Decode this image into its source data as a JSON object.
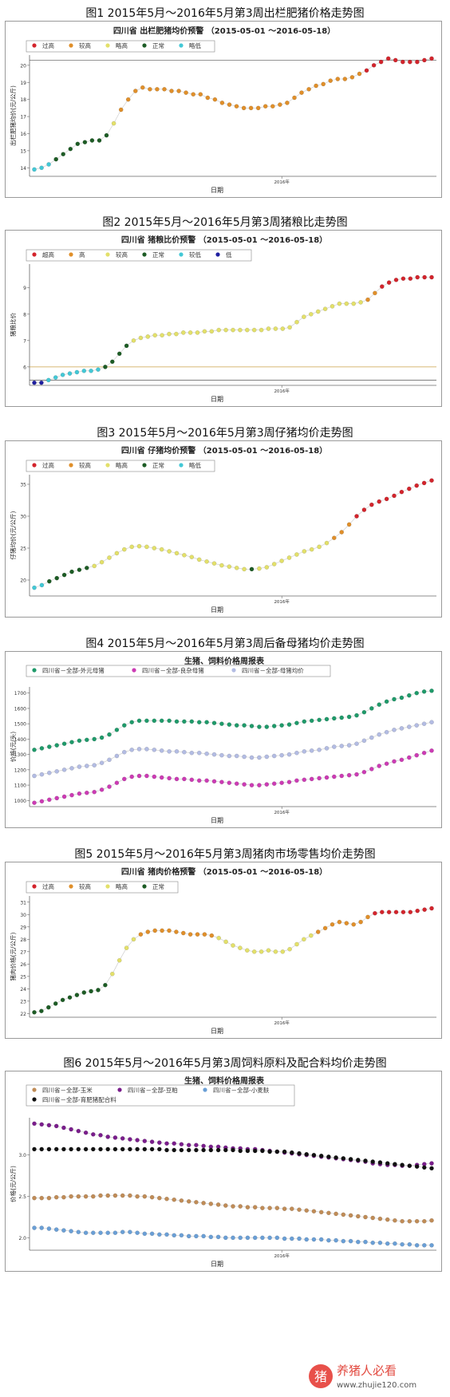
{
  "captions": [
    "图1 2015年5月～2016年5月第3周出栏肥猪价格走势图",
    "图2 2015年5月～2016年5月第3周猪粮比走势图",
    "图3 2015年5月～2016年5月第3周仔猪均价走势图",
    "图4 2015年5月～2016年5月第3周后备母猪均价走势图",
    "图5 2015年5月～2016年5月第3周猪肉市场零售均价走势图",
    "图6 2015年5月～2016年5月第3周饲料原料及配合料均价走势图"
  ],
  "colors": {
    "red": "#d3242c",
    "orange": "#e08f2a",
    "yellow": "#e3e06a",
    "dkgreen": "#1d5c25",
    "cyan": "#43c8d6",
    "navy": "#1f1fa0",
    "teal": "#1f9a6a",
    "magenta": "#cc3bb4",
    "lavender": "#b3bce3",
    "tan": "#c08c57",
    "purple": "#7a1d8c",
    "black": "#111111",
    "steel": "#6a9fd6"
  },
  "watermark": {
    "text": "养猪人必看",
    "url": "www.zhujie120.com"
  },
  "chart_data": [
    {
      "type": "scatter",
      "title": "四川省 出栏肥猪均价预警 （2015-05-01 ～2016-05-18）",
      "xlabel": "日期",
      "ylabel": "出栏肥猪均价(元/公斤)",
      "x_tick": "2016年",
      "ylim": [
        13.5,
        20.6
      ],
      "yticks": [
        "14",
        "15",
        "16",
        "17",
        "18",
        "19",
        "20"
      ],
      "thresholds": [
        20.3
      ],
      "legend": [
        {
          "label": "过高",
          "color": "red"
        },
        {
          "label": "较高",
          "color": "orange"
        },
        {
          "label": "略高",
          "color": "yellow"
        },
        {
          "label": "正常",
          "color": "dkgreen"
        },
        {
          "label": "略低",
          "color": "cyan"
        }
      ],
      "values": [
        13.9,
        14.0,
        14.2,
        14.5,
        14.8,
        15.1,
        15.4,
        15.5,
        15.6,
        15.6,
        15.9,
        16.6,
        17.4,
        18.0,
        18.5,
        18.7,
        18.6,
        18.6,
        18.6,
        18.5,
        18.5,
        18.4,
        18.3,
        18.3,
        18.1,
        18.0,
        17.8,
        17.7,
        17.6,
        17.5,
        17.5,
        17.5,
        17.6,
        17.6,
        17.7,
        17.8,
        18.1,
        18.4,
        18.6,
        18.8,
        18.9,
        19.1,
        19.2,
        19.2,
        19.3,
        19.5,
        19.7,
        20.0,
        20.2,
        20.4,
        20.3,
        20.2,
        20.2,
        20.2,
        20.3,
        20.4
      ],
      "cats": [
        4,
        4,
        4,
        3,
        3,
        3,
        3,
        3,
        3,
        3,
        3,
        2,
        1,
        1,
        1,
        1,
        1,
        1,
        1,
        1,
        1,
        1,
        1,
        1,
        1,
        1,
        1,
        1,
        1,
        1,
        1,
        1,
        1,
        1,
        1,
        1,
        1,
        1,
        1,
        1,
        1,
        1,
        1,
        1,
        1,
        1,
        0,
        0,
        0,
        0,
        0,
        0,
        0,
        0,
        0,
        0
      ]
    },
    {
      "type": "scatter",
      "title": "四川省 猪粮比价预警 （2015-05-01 ～2016-05-18）",
      "xlabel": "日期",
      "ylabel": "猪粮比价",
      "x_tick": "2016年",
      "ylim": [
        5.3,
        9.9
      ],
      "yticks": [
        "6",
        "7",
        "8",
        "9"
      ],
      "thresholds": [
        5.5,
        6.0
      ],
      "legend": [
        {
          "label": "超高",
          "color": "red"
        },
        {
          "label": "高",
          "color": "orange"
        },
        {
          "label": "较高",
          "color": "yellow"
        },
        {
          "label": "正常",
          "color": "dkgreen"
        },
        {
          "label": "较低",
          "color": "cyan"
        },
        {
          "label": "低",
          "color": "navy"
        }
      ],
      "values": [
        5.4,
        5.4,
        5.5,
        5.6,
        5.7,
        5.75,
        5.8,
        5.85,
        5.85,
        5.9,
        6.0,
        6.2,
        6.5,
        6.8,
        7.0,
        7.1,
        7.15,
        7.2,
        7.2,
        7.25,
        7.25,
        7.3,
        7.3,
        7.3,
        7.35,
        7.35,
        7.4,
        7.4,
        7.4,
        7.4,
        7.4,
        7.4,
        7.4,
        7.45,
        7.45,
        7.45,
        7.5,
        7.7,
        7.9,
        8.0,
        8.1,
        8.2,
        8.3,
        8.4,
        8.4,
        8.4,
        8.45,
        8.55,
        8.8,
        9.05,
        9.2,
        9.3,
        9.35,
        9.35,
        9.4,
        9.4,
        9.4
      ],
      "cats": [
        5,
        5,
        4,
        4,
        4,
        4,
        4,
        4,
        4,
        4,
        3,
        3,
        3,
        3,
        2,
        2,
        2,
        2,
        2,
        2,
        2,
        2,
        2,
        2,
        2,
        2,
        2,
        2,
        2,
        2,
        2,
        2,
        2,
        2,
        2,
        2,
        2,
        2,
        2,
        2,
        2,
        2,
        2,
        2,
        2,
        2,
        2,
        1,
        1,
        0,
        0,
        0,
        0,
        0,
        0,
        0,
        0
      ]
    },
    {
      "type": "scatter",
      "title": "四川省 仔猪均价预警 （2015-05-01 ～2016-05-18）",
      "xlabel": "日期",
      "ylabel": "仔猪均价(元/公斤)",
      "x_tick": "2016年",
      "ylim": [
        17.5,
        36.5
      ],
      "yticks": [
        "20",
        "25",
        "30",
        "35"
      ],
      "thresholds": [],
      "legend": [
        {
          "label": "过高",
          "color": "red"
        },
        {
          "label": "较高",
          "color": "orange"
        },
        {
          "label": "略高",
          "color": "yellow"
        },
        {
          "label": "正常",
          "color": "dkgreen"
        },
        {
          "label": "略低",
          "color": "cyan"
        }
      ],
      "values": [
        18.8,
        19.2,
        19.8,
        20.3,
        20.8,
        21.3,
        21.6,
        21.9,
        22.2,
        22.8,
        23.5,
        24.2,
        24.8,
        25.2,
        25.3,
        25.2,
        25.0,
        24.8,
        24.5,
        24.2,
        23.9,
        23.6,
        23.2,
        22.9,
        22.6,
        22.3,
        22.1,
        21.9,
        21.7,
        21.7,
        21.8,
        22.0,
        22.5,
        23.0,
        23.5,
        24.0,
        24.5,
        24.8,
        25.2,
        25.8,
        26.6,
        27.5,
        28.7,
        30.0,
        31.0,
        31.8,
        32.3,
        32.7,
        33.2,
        33.8,
        34.3,
        34.8,
        35.2,
        35.6
      ],
      "cats": [
        4,
        4,
        3,
        3,
        3,
        3,
        3,
        3,
        2,
        2,
        2,
        2,
        2,
        2,
        2,
        2,
        2,
        2,
        2,
        2,
        2,
        2,
        2,
        2,
        2,
        2,
        2,
        2,
        2,
        3,
        2,
        2,
        2,
        2,
        2,
        2,
        2,
        2,
        2,
        2,
        1,
        1,
        1,
        0,
        0,
        0,
        0,
        0,
        0,
        0,
        0,
        0,
        0,
        0
      ]
    },
    {
      "type": "scatter",
      "title": "生猪、饲料价格周报表",
      "xlabel": "日期",
      "ylabel": "价格(元/头)",
      "x_tick": "2016年",
      "ylim": [
        960,
        1740
      ],
      "yticks": [
        "1000",
        "1100",
        "1200",
        "1300",
        "1400",
        "1500",
        "1600",
        "1700"
      ],
      "thresholds": [],
      "legend": [
        {
          "label": "四川省－全部-外元母猪",
          "color": "teal"
        },
        {
          "label": "四川省－全部-良杂母猪",
          "color": "magenta"
        },
        {
          "label": "四川省－全部-母猪均价",
          "color": "lavender"
        }
      ],
      "series": [
        {
          "name": "四川省－全部-外元母猪",
          "color": "teal",
          "values": [
            1330,
            1340,
            1350,
            1360,
            1370,
            1380,
            1390,
            1395,
            1400,
            1410,
            1430,
            1460,
            1490,
            1510,
            1520,
            1520,
            1520,
            1520,
            1520,
            1515,
            1515,
            1515,
            1510,
            1510,
            1505,
            1500,
            1495,
            1490,
            1490,
            1485,
            1480,
            1480,
            1485,
            1490,
            1495,
            1505,
            1515,
            1520,
            1525,
            1530,
            1535,
            1540,
            1545,
            1555,
            1575,
            1600,
            1625,
            1645,
            1660,
            1670,
            1685,
            1700,
            1710,
            1715
          ]
        },
        {
          "name": "四川省－全部-母猪均价",
          "color": "lavender",
          "values": [
            1160,
            1170,
            1180,
            1190,
            1200,
            1210,
            1220,
            1225,
            1230,
            1245,
            1265,
            1290,
            1315,
            1330,
            1335,
            1335,
            1330,
            1325,
            1320,
            1320,
            1315,
            1310,
            1310,
            1305,
            1300,
            1295,
            1290,
            1290,
            1285,
            1280,
            1280,
            1285,
            1290,
            1295,
            1300,
            1310,
            1320,
            1325,
            1330,
            1340,
            1350,
            1355,
            1360,
            1370,
            1390,
            1410,
            1430,
            1445,
            1460,
            1470,
            1480,
            1490,
            1500,
            1510
          ]
        },
        {
          "name": "四川省－全部-良杂母猪",
          "color": "magenta",
          "values": [
            985,
            995,
            1005,
            1015,
            1025,
            1035,
            1045,
            1050,
            1055,
            1070,
            1090,
            1115,
            1140,
            1155,
            1160,
            1160,
            1155,
            1150,
            1145,
            1140,
            1140,
            1135,
            1130,
            1130,
            1125,
            1120,
            1115,
            1110,
            1105,
            1100,
            1100,
            1105,
            1110,
            1115,
            1120,
            1130,
            1135,
            1140,
            1145,
            1150,
            1155,
            1160,
            1165,
            1170,
            1185,
            1205,
            1225,
            1240,
            1255,
            1265,
            1280,
            1295,
            1310,
            1325
          ]
        }
      ]
    },
    {
      "type": "scatter",
      "title": "四川省 猪肉价格预警 （2015-05-01 ～2016-05-18）",
      "xlabel": "日期",
      "ylabel": "猪肉价格(元/公斤)",
      "x_tick": "2016年",
      "ylim": [
        21.7,
        31.5
      ],
      "yticks": [
        "22",
        "23",
        "24",
        "25",
        "26",
        "27",
        "28",
        "29",
        "30",
        "31"
      ],
      "thresholds": [],
      "legend": [
        {
          "label": "过高",
          "color": "red"
        },
        {
          "label": "较高",
          "color": "orange"
        },
        {
          "label": "略高",
          "color": "yellow"
        },
        {
          "label": "正常",
          "color": "dkgreen"
        }
      ],
      "values": [
        22.1,
        22.2,
        22.5,
        22.8,
        23.1,
        23.3,
        23.5,
        23.7,
        23.8,
        23.9,
        24.3,
        25.2,
        26.3,
        27.3,
        28.0,
        28.4,
        28.6,
        28.7,
        28.7,
        28.7,
        28.6,
        28.5,
        28.4,
        28.4,
        28.4,
        28.3,
        28.1,
        27.8,
        27.5,
        27.3,
        27.1,
        27.0,
        27.0,
        27.1,
        27.0,
        27.0,
        27.2,
        27.6,
        28.0,
        28.3,
        28.6,
        28.9,
        29.2,
        29.4,
        29.3,
        29.2,
        29.4,
        29.8,
        30.1,
        30.2,
        30.2,
        30.2,
        30.2,
        30.2,
        30.3,
        30.4,
        30.5
      ],
      "cats": [
        3,
        3,
        3,
        3,
        3,
        3,
        3,
        3,
        3,
        3,
        3,
        2,
        2,
        2,
        2,
        1,
        1,
        1,
        1,
        1,
        1,
        1,
        1,
        1,
        1,
        1,
        2,
        2,
        2,
        2,
        2,
        2,
        2,
        2,
        2,
        2,
        2,
        2,
        2,
        2,
        1,
        1,
        1,
        1,
        1,
        1,
        1,
        1,
        0,
        0,
        0,
        0,
        0,
        0,
        0,
        0,
        0
      ]
    },
    {
      "type": "scatter",
      "title": "生猪、饲料价格周报表",
      "xlabel": "日期",
      "ylabel": "价格(元/公斤)",
      "x_tick": "2016年",
      "ylim": [
        1.85,
        3.45
      ],
      "yticks": [
        "2.0",
        "2.5",
        "3.0"
      ],
      "thresholds": [],
      "legend": [
        {
          "label": "四川省－全部-玉米",
          "color": "tan"
        },
        {
          "label": "四川省－全部-豆粕",
          "color": "purple"
        },
        {
          "label": "四川省－全部-小麦麸",
          "color": "steel"
        },
        {
          "label": "四川省－全部-育肥猪配合料",
          "color": "black"
        }
      ],
      "series": [
        {
          "name": "四川省－全部-豆粕",
          "color": "purple",
          "values": [
            3.38,
            3.37,
            3.36,
            3.35,
            3.33,
            3.31,
            3.29,
            3.27,
            3.25,
            3.24,
            3.22,
            3.21,
            3.2,
            3.19,
            3.18,
            3.17,
            3.16,
            3.15,
            3.14,
            3.14,
            3.13,
            3.12,
            3.12,
            3.11,
            3.1,
            3.1,
            3.09,
            3.08,
            3.08,
            3.07,
            3.07,
            3.06,
            3.05,
            3.04,
            3.03,
            3.02,
            3.01,
            3.0,
            2.99,
            2.98,
            2.97,
            2.96,
            2.95,
            2.94,
            2.93,
            2.92,
            2.9,
            2.89,
            2.88,
            2.88,
            2.87,
            2.87,
            2.88,
            2.89,
            2.9
          ]
        },
        {
          "name": "四川省－全部-育肥猪配合料",
          "color": "black",
          "values": [
            3.07,
            3.07,
            3.07,
            3.07,
            3.07,
            3.07,
            3.07,
            3.07,
            3.07,
            3.07,
            3.07,
            3.07,
            3.07,
            3.07,
            3.07,
            3.07,
            3.07,
            3.07,
            3.06,
            3.06,
            3.06,
            3.06,
            3.06,
            3.06,
            3.06,
            3.06,
            3.06,
            3.06,
            3.05,
            3.05,
            3.05,
            3.05,
            3.04,
            3.04,
            3.04,
            3.03,
            3.02,
            3.01,
            3.0,
            2.99,
            2.98,
            2.97,
            2.96,
            2.95,
            2.94,
            2.93,
            2.92,
            2.91,
            2.9,
            2.89,
            2.88,
            2.87,
            2.86,
            2.85,
            2.84
          ]
        },
        {
          "name": "四川省－全部-玉米",
          "color": "tan",
          "values": [
            2.48,
            2.48,
            2.48,
            2.49,
            2.49,
            2.5,
            2.5,
            2.5,
            2.5,
            2.51,
            2.51,
            2.51,
            2.51,
            2.51,
            2.5,
            2.5,
            2.49,
            2.48,
            2.47,
            2.46,
            2.45,
            2.44,
            2.43,
            2.42,
            2.41,
            2.4,
            2.39,
            2.38,
            2.38,
            2.37,
            2.37,
            2.36,
            2.36,
            2.36,
            2.35,
            2.35,
            2.34,
            2.33,
            2.32,
            2.31,
            2.3,
            2.29,
            2.28,
            2.27,
            2.26,
            2.25,
            2.24,
            2.23,
            2.22,
            2.21,
            2.2,
            2.2,
            2.2,
            2.2,
            2.21
          ]
        },
        {
          "name": "四川省－全部-小麦麸",
          "color": "steel",
          "values": [
            2.12,
            2.12,
            2.11,
            2.1,
            2.09,
            2.08,
            2.07,
            2.06,
            2.06,
            2.06,
            2.06,
            2.06,
            2.07,
            2.07,
            2.06,
            2.05,
            2.05,
            2.04,
            2.04,
            2.03,
            2.03,
            2.02,
            2.02,
            2.02,
            2.01,
            2.01,
            2.0,
            2.0,
            2.0,
            2.0,
            2.0,
            2.0,
            2.0,
            2.0,
            1.99,
            1.99,
            1.99,
            1.98,
            1.98,
            1.98,
            1.97,
            1.97,
            1.96,
            1.96,
            1.95,
            1.95,
            1.94,
            1.94,
            1.93,
            1.93,
            1.92,
            1.92,
            1.91,
            1.91,
            1.91
          ]
        }
      ]
    }
  ]
}
